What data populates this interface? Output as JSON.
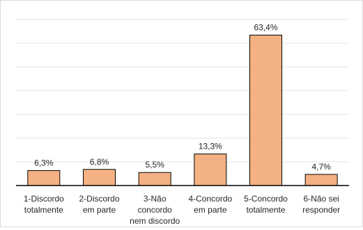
{
  "chart_data": {
    "type": "bar",
    "categories": [
      [
        "1-Discordo",
        "totalmente"
      ],
      [
        "2-Discordo",
        "em parte"
      ],
      [
        "3-Não",
        "concordo",
        "nem discordo"
      ],
      [
        "4-Concordo",
        "em parte"
      ],
      [
        "5-Concordo",
        "totalmente"
      ],
      [
        "6-Não sei",
        "responder"
      ]
    ],
    "values": [
      6.3,
      6.8,
      5.5,
      13.3,
      63.4,
      4.7
    ],
    "data_labels": [
      "6,3%",
      "6,8%",
      "5,5%",
      "13,3%",
      "63,4%",
      "4,7%"
    ],
    "ylim": [
      0,
      70
    ],
    "grid": true,
    "bar_color": "#F4B183",
    "bar_edge_color": "#000000",
    "gridline_color": "#e6e6e6"
  }
}
